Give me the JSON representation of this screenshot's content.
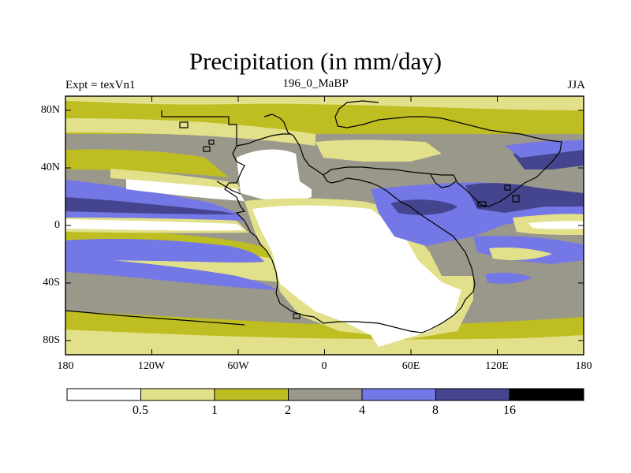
{
  "title": "Precipitation (in mm/day)",
  "subtitle_left": "Expt = texVn1",
  "subtitle_center": "196_0_MaBP",
  "subtitle_right": "JJA",
  "longitude_labels": [
    "180",
    "120W",
    "60W",
    "0",
    "60E",
    "120E",
    "180"
  ],
  "latitude_labels": [
    "80N",
    "40N",
    "0",
    "40S",
    "80S"
  ],
  "legend": {
    "labels": [
      "0.5",
      "1",
      "2",
      "4",
      "8",
      "16"
    ],
    "colors": [
      "#ffffff",
      "#e2e08a",
      "#bebd22",
      "#9a988a",
      "#7477e6",
      "#45458f",
      "#000000"
    ]
  },
  "chart_data": {
    "type": "heatmap",
    "title": "Precipitation (in mm/day)",
    "variable": "Precipitation",
    "units": "mm/day",
    "experiment": "texVn1",
    "period": "196_0_MaBP",
    "season": "JJA",
    "x_range": [
      -180,
      180
    ],
    "y_range": [
      -90,
      90
    ],
    "contour_levels": [
      0.5,
      1,
      2,
      4,
      8,
      16
    ]
  }
}
